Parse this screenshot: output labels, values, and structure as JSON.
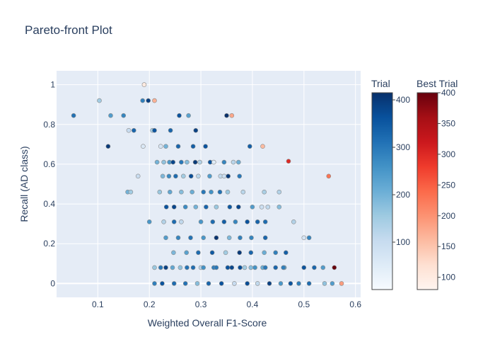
{
  "chart_data": {
    "type": "scatter",
    "title": "Pareto-front Plot",
    "xlabel": "Weighted Overall F1-Score",
    "ylabel": "Recall (AD class)",
    "xlim": [
      0.02,
      0.61
    ],
    "ylim": [
      -0.07,
      1.07
    ],
    "xticks": [
      0.1,
      0.2,
      0.3,
      0.4,
      0.5,
      0.6
    ],
    "yticks": [
      0,
      0.2,
      0.4,
      0.6,
      0.8,
      1
    ],
    "grid": true,
    "colorbars": [
      {
        "title": "Trial",
        "colorscale": "Blues",
        "range": [
          0,
          415
        ],
        "ticks": [
          100,
          200,
          300,
          400
        ]
      },
      {
        "title": "Best Trial",
        "colorscale": "Reds",
        "range": [
          80,
          400
        ],
        "ticks": [
          100,
          150,
          200,
          250,
          300,
          350,
          400
        ]
      }
    ],
    "series": [
      {
        "colorscale": "Blues",
        "x": [
          0.053,
          0.103,
          0.125,
          0.15,
          0.17,
          0.187,
          0.198,
          0.206,
          0.222,
          0.241,
          0.258,
          0.276,
          0.29,
          0.12,
          0.16,
          0.188,
          0.21,
          0.232,
          0.256,
          0.285,
          0.309,
          0.35,
          0.395,
          0.215,
          0.228,
          0.239,
          0.246,
          0.262,
          0.273,
          0.289,
          0.298,
          0.318,
          0.325,
          0.345,
          0.363,
          0.373,
          0.178,
          0.226,
          0.238,
          0.251,
          0.266,
          0.281,
          0.295,
          0.317,
          0.338,
          0.345,
          0.353,
          0.375,
          0.158,
          0.164,
          0.22,
          0.24,
          0.262,
          0.283,
          0.305,
          0.32,
          0.337,
          0.352,
          0.382,
          0.423,
          0.452,
          0.233,
          0.248,
          0.27,
          0.29,
          0.31,
          0.33,
          0.356,
          0.373,
          0.4,
          0.418,
          0.43,
          0.452,
          0.2,
          0.228,
          0.248,
          0.262,
          0.3,
          0.323,
          0.345,
          0.367,
          0.39,
          0.41,
          0.425,
          0.48,
          0.232,
          0.256,
          0.28,
          0.305,
          0.33,
          0.355,
          0.376,
          0.398,
          0.425,
          0.5,
          0.51,
          0.247,
          0.272,
          0.295,
          0.322,
          0.348,
          0.375,
          0.397,
          0.423,
          0.445,
          0.465,
          0.222,
          0.245,
          0.273,
          0.3,
          0.325,
          0.352,
          0.376,
          0.397,
          0.42,
          0.445,
          0.462,
          0.21,
          0.232,
          0.26,
          0.285,
          0.305,
          0.33,
          0.36,
          0.385,
          0.405,
          0.425,
          0.46,
          0.5,
          0.52,
          0.537,
          0.21,
          0.225,
          0.248,
          0.27,
          0.293,
          0.315,
          0.34,
          0.365,
          0.39,
          0.41,
          0.433,
          0.455,
          0.474,
          0.49,
          0.51,
          0.54,
          0.555
        ],
        "y": [
          0.845,
          0.92,
          0.845,
          0.845,
          0.77,
          0.92,
          0.92,
          0.77,
          0.69,
          0.77,
          0.845,
          0.845,
          0.77,
          0.69,
          0.77,
          0.69,
          0.77,
          0.69,
          0.69,
          0.69,
          0.69,
          0.845,
          0.69,
          0.61,
          0.61,
          0.61,
          0.61,
          0.61,
          0.61,
          0.61,
          0.61,
          0.61,
          0.61,
          0.61,
          0.61,
          0.61,
          0.54,
          0.54,
          0.54,
          0.54,
          0.54,
          0.54,
          0.54,
          0.54,
          0.54,
          0.54,
          0.54,
          0.54,
          0.46,
          0.46,
          0.46,
          0.46,
          0.46,
          0.46,
          0.46,
          0.46,
          0.46,
          0.46,
          0.46,
          0.46,
          0.46,
          0.385,
          0.385,
          0.385,
          0.385,
          0.385,
          0.385,
          0.385,
          0.385,
          0.385,
          0.385,
          0.385,
          0.385,
          0.31,
          0.31,
          0.31,
          0.31,
          0.31,
          0.31,
          0.31,
          0.31,
          0.31,
          0.31,
          0.31,
          0.31,
          0.23,
          0.23,
          0.23,
          0.23,
          0.23,
          0.23,
          0.23,
          0.23,
          0.23,
          0.23,
          0.23,
          0.155,
          0.155,
          0.155,
          0.155,
          0.155,
          0.155,
          0.155,
          0.155,
          0.155,
          0.155,
          0.08,
          0.08,
          0.08,
          0.08,
          0.08,
          0.08,
          0.08,
          0.08,
          0.08,
          0.08,
          0.08,
          0.08,
          0.08,
          0.08,
          0.08,
          0.08,
          0.08,
          0.08,
          0.08,
          0.08,
          0.08,
          0.08,
          0.08,
          0.08,
          0.08,
          0,
          0,
          0,
          0,
          0,
          0,
          0,
          0,
          0,
          0,
          0,
          0,
          0,
          0,
          0,
          0,
          0
        ],
        "trial": [
          310,
          150,
          240,
          280,
          330,
          290,
          390,
          150,
          70,
          330,
          360,
          230,
          390,
          400,
          100,
          60,
          360,
          200,
          330,
          340,
          360,
          420,
          340,
          200,
          170,
          250,
          380,
          300,
          180,
          400,
          130,
          360,
          50,
          280,
          120,
          210,
          100,
          190,
          270,
          320,
          150,
          370,
          120,
          240,
          110,
          90,
          400,
          300,
          200,
          150,
          160,
          220,
          180,
          210,
          300,
          260,
          310,
          160,
          120,
          140,
          130,
          360,
          380,
          270,
          200,
          330,
          160,
          350,
          380,
          240,
          90,
          110,
          180,
          250,
          130,
          320,
          110,
          250,
          320,
          340,
          280,
          360,
          330,
          320,
          130,
          240,
          280,
          310,
          250,
          410,
          190,
          290,
          280,
          330,
          70,
          280,
          190,
          230,
          320,
          350,
          150,
          400,
          330,
          210,
          290,
          340,
          300,
          220,
          310,
          120,
          290,
          360,
          370,
          180,
          210,
          330,
          230,
          160,
          390,
          170,
          320,
          260,
          300,
          380,
          150,
          260,
          300,
          290,
          360,
          330,
          240,
          290,
          360,
          320,
          310,
          180,
          330,
          360,
          100,
          370,
          110,
          390,
          250,
          360,
          290,
          320,
          170,
          240
        ]
      },
      {
        "name": "Best Trial",
        "colorscale": "Reds",
        "x": [
          0.19,
          0.21,
          0.36,
          0.42,
          0.47,
          0.548,
          0.559,
          0.573
        ],
        "y": [
          1.0,
          0.92,
          0.845,
          0.69,
          0.615,
          0.54,
          0.08,
          0.0
        ],
        "trial": [
          100,
          170,
          180,
          160,
          300,
          230,
          400,
          190
        ]
      }
    ]
  }
}
